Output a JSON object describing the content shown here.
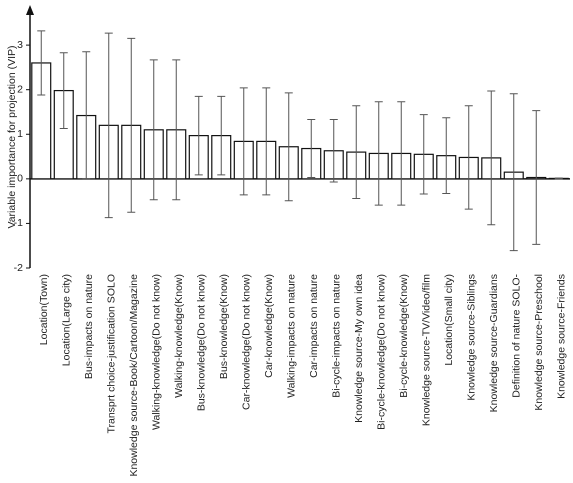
{
  "chart_data": {
    "type": "bar",
    "y_label": "Variable importance for projection (VIP)",
    "categories": [
      "Location(Town)",
      "Location(Large city)",
      "Bus-impacts on nature",
      "Transprt choice-justification SOLO",
      "Knowledge source-Book/Cartoon/Magazine",
      "Walking-knowledge(Do not know)",
      "Walking-knowledge(Know)",
      "Bus-knowledge(Do not know)",
      "Bus-knowledge(Know)",
      "Car-knowledge(Do not know)",
      "Car-knowledge(Know)",
      "Walking-impacts on nature",
      "Car-impacts on nature",
      "Bi-cycle-impacts on nature",
      "Knowledge source-My own idea",
      "Bi-cycle-knowledge(Do not know)",
      "Bi-cycle-knowledge(Know)",
      "Knowledge source-TV/Video/film",
      "Location(Small city)",
      "Knowledge source-Siblings",
      "Knowledge source-Guardians",
      "Definition of nature SOLO-",
      "Knowledge source-Preschool",
      "Knowledge source-Friends"
    ],
    "values": [
      2.6,
      1.98,
      1.42,
      1.2,
      1.2,
      1.1,
      1.1,
      0.97,
      0.97,
      0.84,
      0.84,
      0.72,
      0.68,
      0.63,
      0.6,
      0.57,
      0.57,
      0.55,
      0.52,
      0.48,
      0.47,
      0.15,
      0.03,
      0.01
    ],
    "errors": [
      0.72,
      0.85,
      1.43,
      2.07,
      1.95,
      1.57,
      1.57,
      0.88,
      0.88,
      1.2,
      1.2,
      1.21,
      0.65,
      0.7,
      1.04,
      1.16,
      1.16,
      0.89,
      0.85,
      1.16,
      1.5,
      1.76,
      1.5,
      0.01
    ],
    "color": "#ffffff",
    "edge_color": "#111111",
    "error_color": "#555555",
    "ylim": [
      -2,
      3.9
    ],
    "yticks": [
      -2,
      -1,
      0,
      1,
      2,
      3
    ],
    "grid": false
  }
}
